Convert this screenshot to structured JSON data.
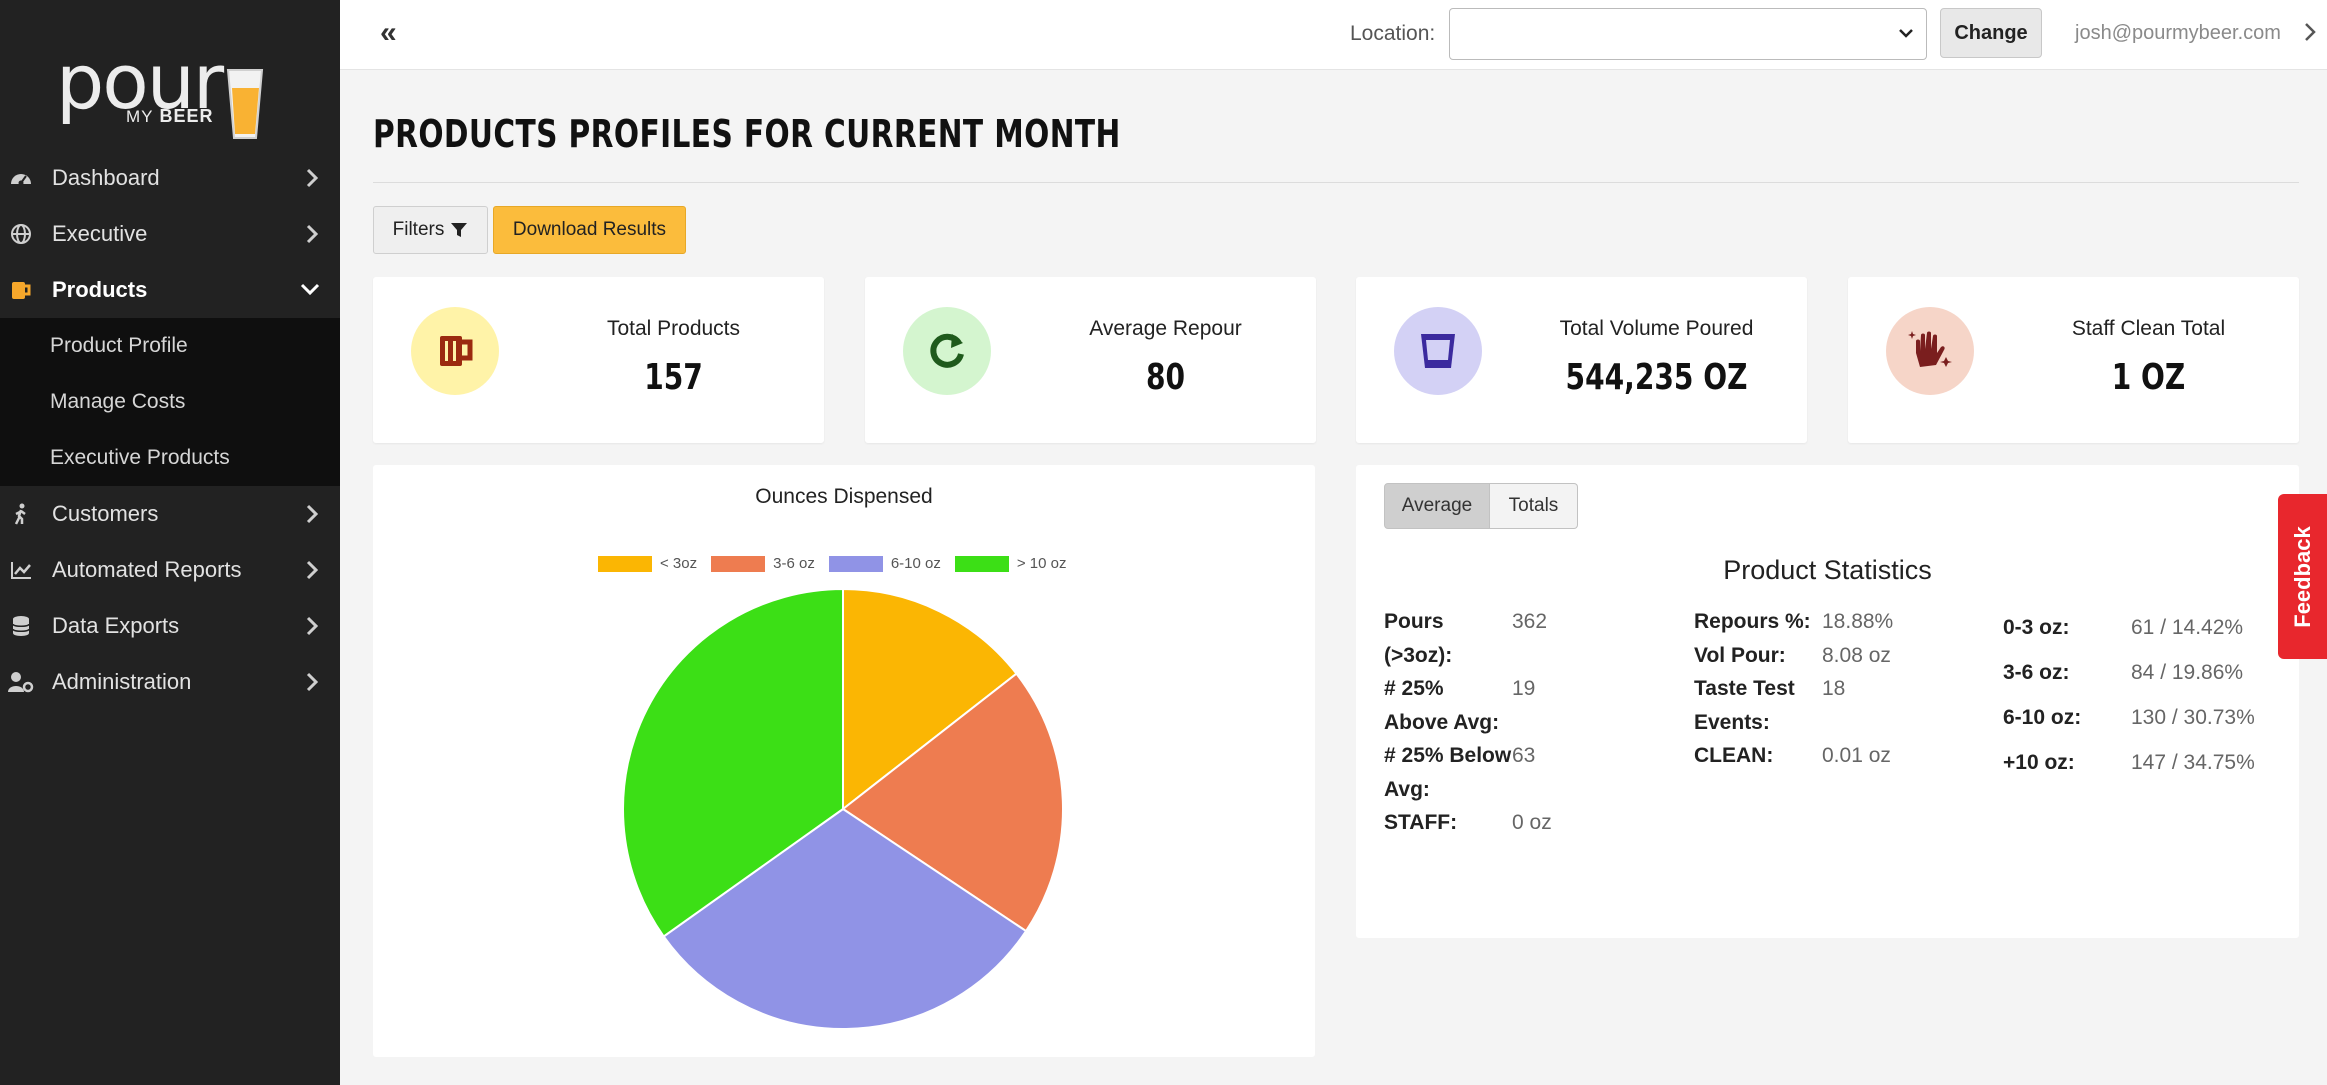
{
  "brand": {
    "logo_text": "pour",
    "logo_sub_my": "MY",
    "logo_sub_beer": "BEER"
  },
  "sidebar": {
    "items": [
      {
        "label": "Dashboard",
        "icon": "dashboard-icon"
      },
      {
        "label": "Executive",
        "icon": "globe-icon"
      },
      {
        "label": "Products",
        "icon": "beer-mug-icon",
        "active": true
      },
      {
        "label": "Customers",
        "icon": "walking-person-icon"
      },
      {
        "label": "Automated Reports",
        "icon": "chart-line-icon"
      },
      {
        "label": "Data Exports",
        "icon": "database-icon"
      },
      {
        "label": "Administration",
        "icon": "user-cog-icon"
      }
    ],
    "sub_items": [
      {
        "label": "Product Profile"
      },
      {
        "label": "Manage Costs"
      },
      {
        "label": "Executive Products"
      }
    ]
  },
  "topbar": {
    "collapse_label": "«",
    "location_label": "Location:",
    "location_value": "",
    "change_label": "Change",
    "user_email": "josh@pourmybeer.com"
  },
  "page": {
    "title": "PRODUCTS PROFILES FOR CURRENT MONTH",
    "filters_label": "Filters",
    "download_label": "Download Results"
  },
  "cards": [
    {
      "label": "Total Products",
      "value": "157",
      "icon": "beer-mug-icon",
      "bg": "#fff3a8",
      "fg": "#9b2a10"
    },
    {
      "label": "Average Repour",
      "value": "80",
      "icon": "redo-icon",
      "bg": "#d4f5cf",
      "fg": "#1f5a1c"
    },
    {
      "label": "Total Volume Poured",
      "value": "544,235 OZ",
      "icon": "glass-icon",
      "bg": "#d3d1f5",
      "fg": "#3b2a9e"
    },
    {
      "label": "Staff Clean Total",
      "value": "1 OZ",
      "icon": "clean-hands-icon",
      "bg": "#f6d5c8",
      "fg": "#7a1e1e"
    }
  ],
  "chart_data": {
    "type": "pie",
    "title": "Ounces Dispensed",
    "categories": [
      "< 3oz",
      "3-6 oz",
      "6-10 oz",
      "> 10 oz"
    ],
    "values": [
      61,
      84,
      130,
      147
    ],
    "colors": [
      "#fbb603",
      "#ee7c50",
      "#9093e6",
      "#3cdf16"
    ],
    "legend_position": "top"
  },
  "stats": {
    "tabs": [
      {
        "label": "Average",
        "active": true
      },
      {
        "label": "Totals",
        "active": false
      }
    ],
    "title": "Product Statistics",
    "col1": [
      {
        "k": "Pours (>3oz):",
        "v": "362"
      },
      {
        "k": "# 25% Above Avg:",
        "v": "19"
      },
      {
        "k": "# 25% Below Avg:",
        "v": "63"
      },
      {
        "k": "STAFF:",
        "v": "0 oz"
      }
    ],
    "col2": [
      {
        "k": "Repours %:",
        "v": "18.88%"
      },
      {
        "k": "Vol Pour:",
        "v": "8.08 oz"
      },
      {
        "k": "Taste Test Events:",
        "v": "18"
      },
      {
        "k": "CLEAN:",
        "v": "0.01 oz"
      }
    ],
    "col3": [
      {
        "k": "0-3 oz:",
        "v": "61 / 14.42%"
      },
      {
        "k": "3-6 oz:",
        "v": "84 / 19.86%"
      },
      {
        "k": "6-10 oz:",
        "v": "130 / 30.73%"
      },
      {
        "k": "+10 oz:",
        "v": "147 / 34.75%"
      }
    ]
  },
  "feedback_label": "Feedback"
}
